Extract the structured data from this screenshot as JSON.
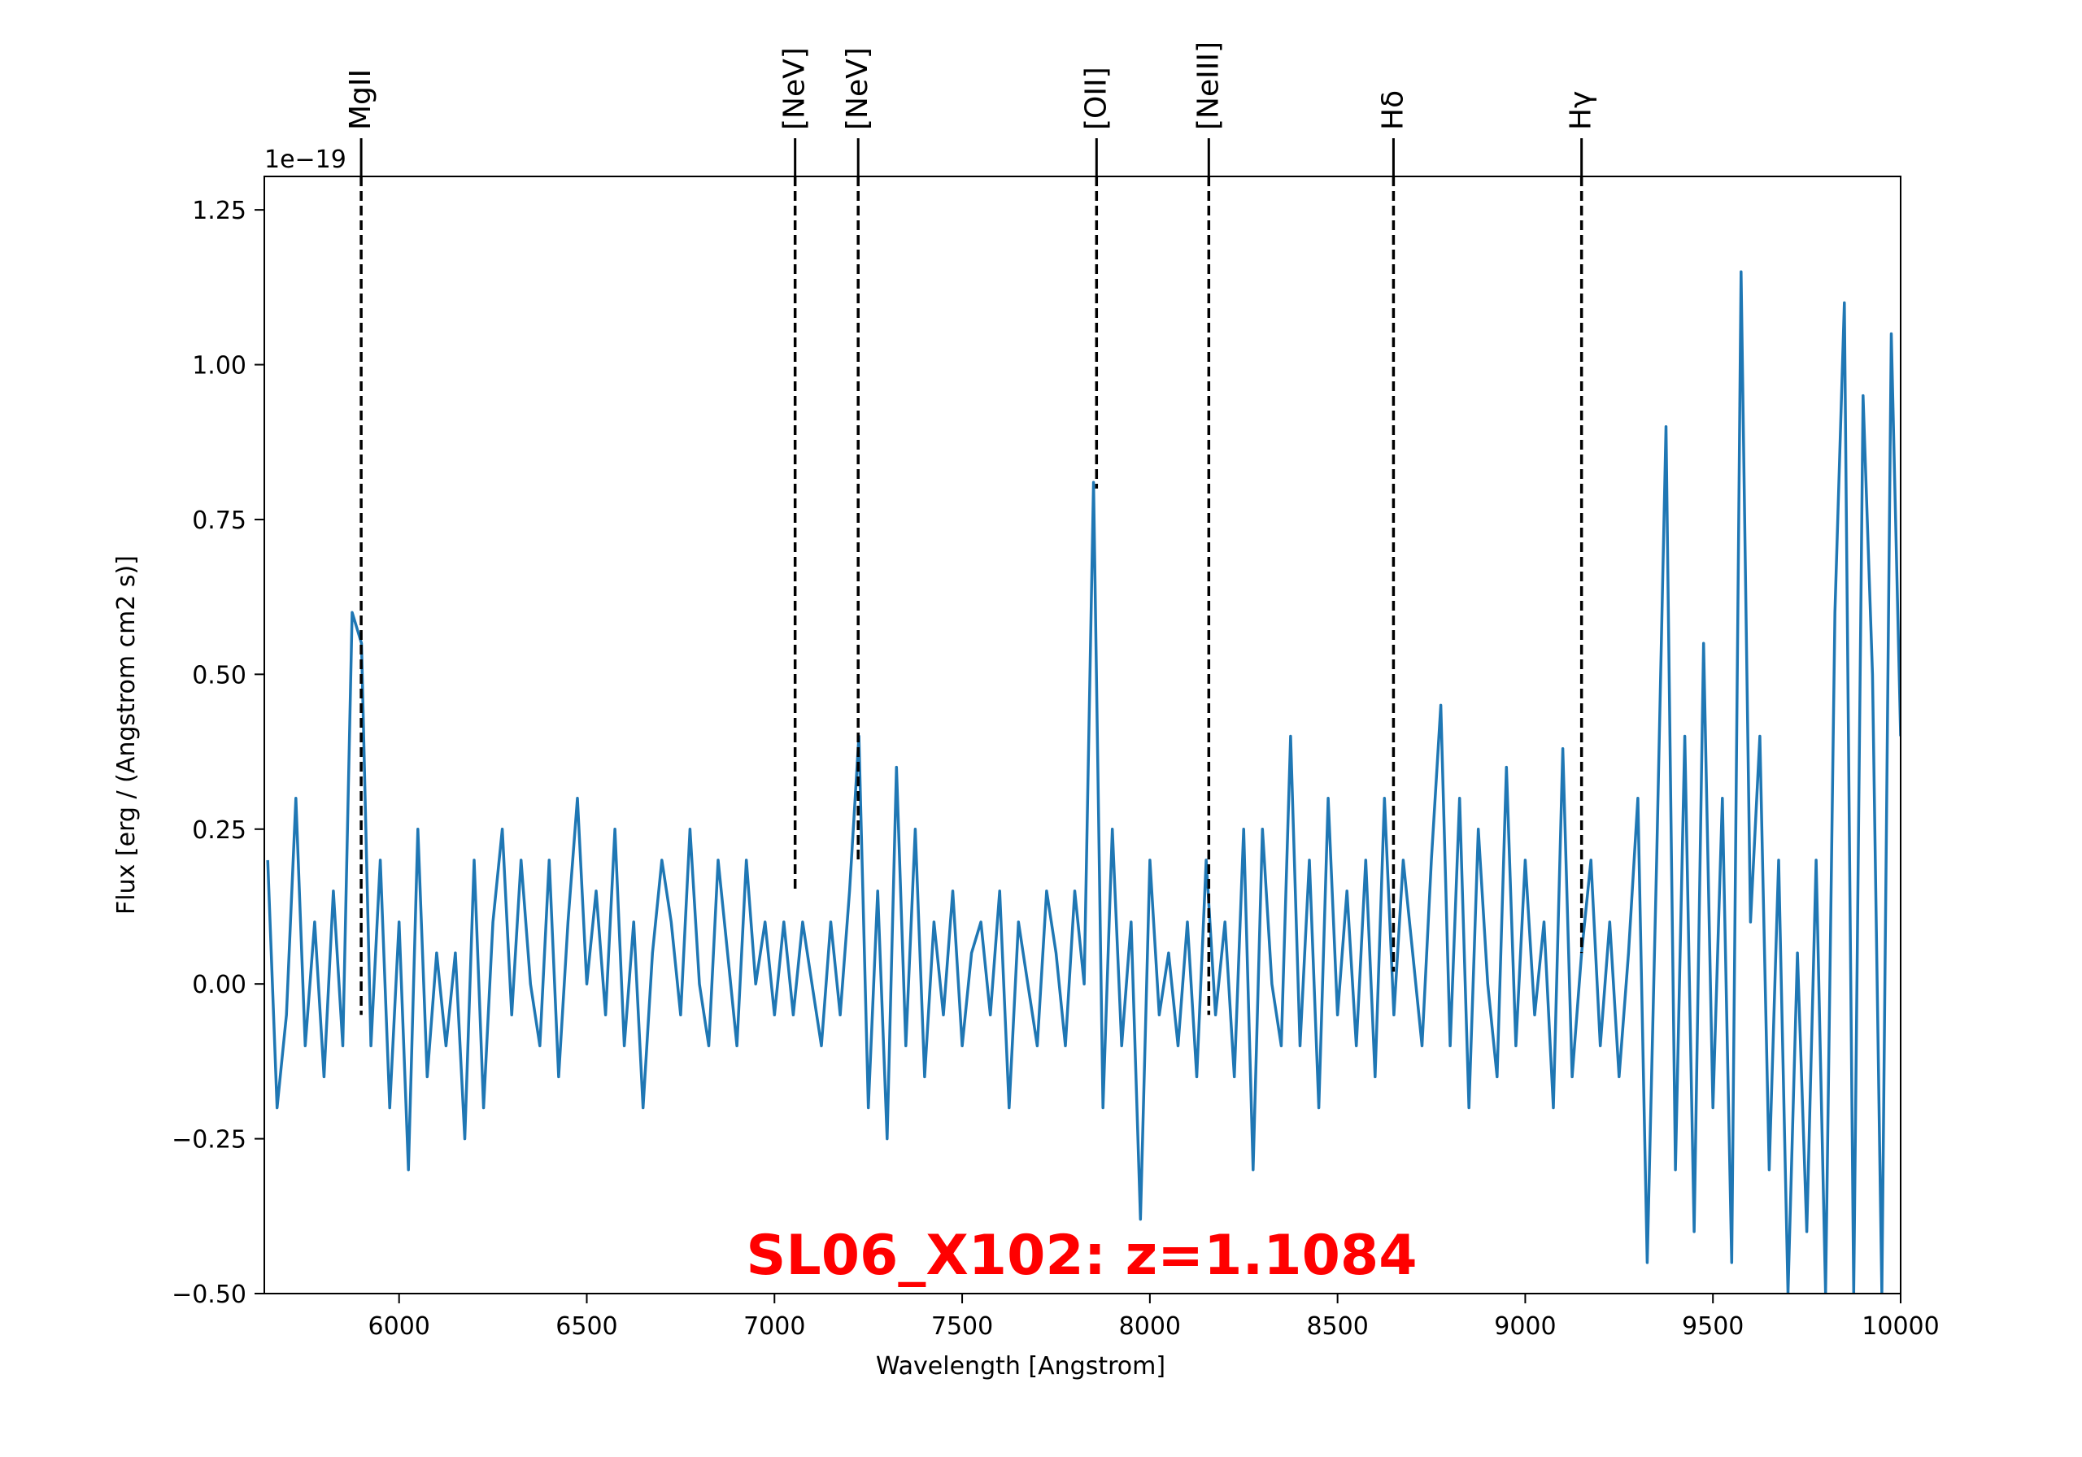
{
  "chart_data": {
    "type": "line",
    "annotation": "SL06_X102: z=1.1084",
    "xlabel": "Wavelength [Angstrom]",
    "ylabel": "Flux [erg / (Angstrom cm2 s)]",
    "offset_text": "1e−19",
    "xlim": [
      5641,
      10000
    ],
    "ylim": [
      -0.5,
      1.304
    ],
    "xticks": [
      6000,
      6500,
      7000,
      7500,
      8000,
      8500,
      9000,
      9500,
      10000
    ],
    "yticks": [
      {
        "value": -0.5,
        "label": "−0.50"
      },
      {
        "value": -0.25,
        "label": "−0.25"
      },
      {
        "value": 0,
        "label": "0.00"
      },
      0.25,
      {
        "value": 0.5,
        "label": "0.50"
      },
      0.75,
      {
        "value": 1,
        "label": "1.00"
      },
      1.25
    ],
    "grid": false,
    "series": [
      {
        "name": "spectrum",
        "color": "#1f77b4",
        "x": [
          5650,
          5675,
          5700,
          5725,
          5750,
          5775,
          5800,
          5825,
          5850,
          5875,
          5900,
          5925,
          5950,
          5975,
          6000,
          6025,
          6050,
          6075,
          6100,
          6125,
          6150,
          6175,
          6200,
          6225,
          6250,
          6275,
          6300,
          6325,
          6350,
          6375,
          6400,
          6425,
          6450,
          6475,
          6500,
          6525,
          6550,
          6575,
          6600,
          6625,
          6650,
          6675,
          6700,
          6725,
          6750,
          6775,
          6800,
          6825,
          6850,
          6875,
          6900,
          6925,
          6950,
          6975,
          7000,
          7025,
          7050,
          7075,
          7100,
          7125,
          7150,
          7175,
          7200,
          7225,
          7250,
          7275,
          7300,
          7325,
          7350,
          7375,
          7400,
          7425,
          7450,
          7475,
          7500,
          7525,
          7550,
          7575,
          7600,
          7625,
          7650,
          7675,
          7700,
          7725,
          7750,
          7775,
          7800,
          7825,
          7850,
          7875,
          7900,
          7925,
          7950,
          7975,
          8000,
          8025,
          8050,
          8075,
          8100,
          8125,
          8150,
          8175,
          8200,
          8225,
          8250,
          8275,
          8300,
          8325,
          8350,
          8375,
          8400,
          8425,
          8450,
          8475,
          8500,
          8525,
          8550,
          8575,
          8600,
          8625,
          8650,
          8675,
          8700,
          8725,
          8750,
          8775,
          8800,
          8825,
          8850,
          8875,
          8900,
          8925,
          8950,
          8975,
          9000,
          9025,
          9050,
          9075,
          9100,
          9125,
          9150,
          9175,
          9200,
          9225,
          9250,
          9275,
          9300,
          9325,
          9350,
          9375,
          9400,
          9425,
          9450,
          9475,
          9500,
          9525,
          9550,
          9575,
          9600,
          9625,
          9650,
          9675,
          9700,
          9725,
          9750,
          9775,
          9800,
          9825,
          9850,
          9875,
          9900,
          9925,
          9950,
          9975,
          10000
        ],
        "values": [
          0.2,
          -0.2,
          -0.05,
          0.3,
          -0.1,
          0.1,
          -0.15,
          0.15,
          -0.1,
          0.6,
          0.55,
          -0.1,
          0.2,
          -0.2,
          0.1,
          -0.3,
          0.25,
          -0.15,
          0.05,
          -0.1,
          0.05,
          -0.25,
          0.2,
          -0.2,
          0.1,
          0.25,
          -0.05,
          0.2,
          0.0,
          -0.1,
          0.2,
          -0.15,
          0.1,
          0.3,
          0.0,
          0.15,
          -0.05,
          0.25,
          -0.1,
          0.1,
          -0.2,
          0.05,
          0.2,
          0.1,
          -0.05,
          0.25,
          0.0,
          -0.1,
          0.2,
          0.05,
          -0.1,
          0.2,
          0.0,
          0.1,
          -0.05,
          0.1,
          -0.05,
          0.1,
          0.0,
          -0.1,
          0.1,
          -0.05,
          0.15,
          0.4,
          -0.2,
          0.15,
          -0.25,
          0.35,
          -0.1,
          0.25,
          -0.15,
          0.1,
          -0.05,
          0.15,
          -0.1,
          0.05,
          0.1,
          -0.05,
          0.15,
          -0.2,
          0.1,
          0.0,
          -0.1,
          0.15,
          0.05,
          -0.1,
          0.15,
          0.0,
          0.81,
          -0.2,
          0.25,
          -0.1,
          0.1,
          -0.38,
          0.2,
          -0.05,
          0.05,
          -0.1,
          0.1,
          -0.15,
          0.2,
          -0.05,
          0.1,
          -0.15,
          0.25,
          -0.3,
          0.25,
          0.0,
          -0.1,
          0.4,
          -0.1,
          0.2,
          -0.2,
          0.3,
          -0.05,
          0.15,
          -0.1,
          0.2,
          -0.15,
          0.3,
          -0.05,
          0.2,
          0.05,
          -0.1,
          0.2,
          0.45,
          -0.1,
          0.3,
          -0.2,
          0.25,
          0.0,
          -0.15,
          0.35,
          -0.1,
          0.2,
          -0.05,
          0.1,
          -0.2,
          0.38,
          -0.15,
          0.05,
          0.2,
          -0.1,
          0.1,
          -0.15,
          0.05,
          0.3,
          -0.45,
          0.2,
          0.9,
          -0.3,
          0.4,
          -0.4,
          0.55,
          -0.2,
          0.3,
          -0.45,
          1.15,
          0.1,
          0.4,
          -0.3,
          0.2,
          -0.5,
          0.05,
          -0.4,
          0.2,
          -0.5,
          0.6,
          1.1,
          -0.5,
          0.95,
          0.5,
          -0.5,
          1.05,
          0.4
        ]
      }
    ],
    "lines": [
      {
        "label": "MgII",
        "x": 5899,
        "ymin": -0.05
      },
      {
        "label": "[NeV]",
        "x": 7055,
        "ymin": 0.15
      },
      {
        "label": "[NeV]",
        "x": 7223,
        "ymin": 0.2
      },
      {
        "label": "[OII]",
        "x": 7858,
        "ymin": 0.8
      },
      {
        "label": "[NeIII]",
        "x": 8157,
        "ymin": -0.05
      },
      {
        "label": "Hδ",
        "x": 8649,
        "ymin": 0.02
      },
      {
        "label": "Hγ",
        "x": 9150,
        "ymin": 0.05
      }
    ]
  }
}
